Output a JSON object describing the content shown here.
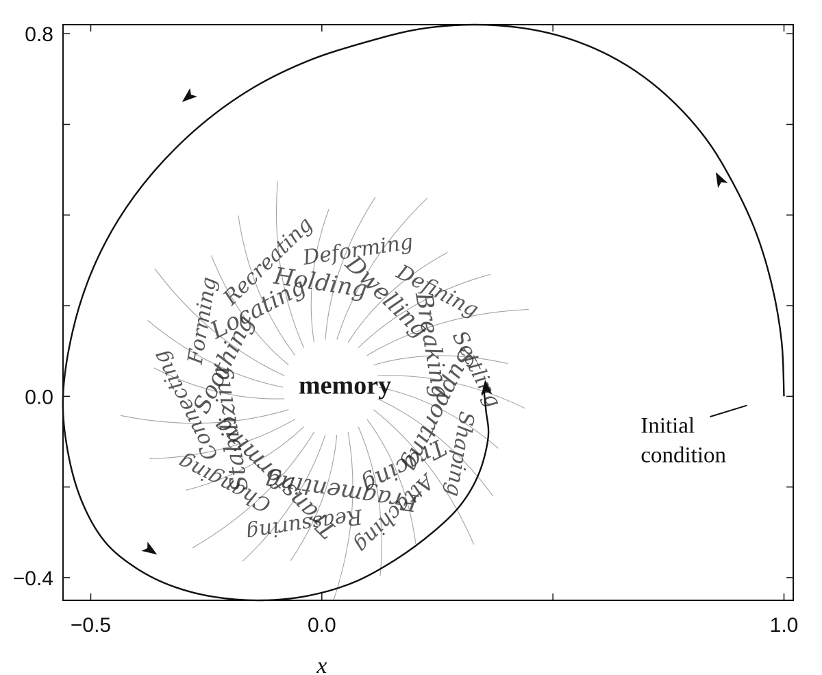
{
  "chart_data": {
    "type": "line",
    "title": "",
    "xlabel": "x",
    "ylabel": "",
    "xlim": [
      -0.56,
      1.02
    ],
    "ylim": [
      -0.45,
      0.82
    ],
    "x_ticks": [
      {
        "value": -0.5,
        "label": "−0.5"
      },
      {
        "value": 0.0,
        "label": "0.0"
      },
      {
        "value": 0.5,
        "label": ""
      },
      {
        "value": 1.0,
        "label": "1.0"
      }
    ],
    "y_ticks": [
      {
        "value": 0.8,
        "label": "0.8"
      },
      {
        "value": 0.6,
        "label": ""
      },
      {
        "value": 0.4,
        "label": ""
      },
      {
        "value": 0.2,
        "label": ""
      },
      {
        "value": 0.0,
        "label": "0.0"
      },
      {
        "value": -0.2,
        "label": ""
      },
      {
        "value": -0.4,
        "label": "−0.4"
      }
    ],
    "trajectory": {
      "x": [
        1.0,
        0.995,
        0.975,
        0.94,
        0.89,
        0.83,
        0.75,
        0.66,
        0.56,
        0.45,
        0.33,
        0.21,
        0.09,
        -0.03,
        -0.15,
        -0.26,
        -0.36,
        -0.44,
        -0.5,
        -0.54,
        -0.56,
        -0.55,
        -0.52,
        -0.47,
        -0.4,
        -0.32,
        -0.23,
        -0.13,
        -0.03,
        0.07,
        0.16,
        0.24,
        0.3,
        0.34,
        0.36,
        0.355,
        0.35
      ],
      "y": [
        0.0,
        0.12,
        0.24,
        0.36,
        0.47,
        0.57,
        0.66,
        0.73,
        0.78,
        0.81,
        0.82,
        0.81,
        0.78,
        0.74,
        0.68,
        0.6,
        0.5,
        0.39,
        0.27,
        0.14,
        0.0,
        -0.12,
        -0.23,
        -0.32,
        -0.38,
        -0.42,
        -0.443,
        -0.45,
        -0.44,
        -0.41,
        -0.36,
        -0.3,
        -0.24,
        -0.17,
        -0.09,
        -0.03,
        0.02
      ]
    },
    "arrows": [
      {
        "x": 0.86,
        "y": 0.48
      },
      {
        "x": -0.29,
        "y": 0.66
      },
      {
        "x": -0.37,
        "y": -0.34
      },
      {
        "x": 0.355,
        "y": 0.02
      }
    ],
    "annotations": {
      "center": "memory",
      "initial_line": "Initial",
      "initial_line2": "condition"
    },
    "scribble_words": [
      "Supporting",
      "Shaping",
      "Tracing",
      "Attaching",
      "Fragmenting",
      "Reassuring",
      "Transforming",
      "Changing",
      "Stabilizing",
      "Connecting",
      "Soothing",
      "Forming",
      "Locating",
      "Recreating",
      "Holding",
      "Deforming",
      "Dwelling",
      "Defining",
      "Breaking",
      "Settling"
    ],
    "grid": false,
    "legend": "none"
  }
}
